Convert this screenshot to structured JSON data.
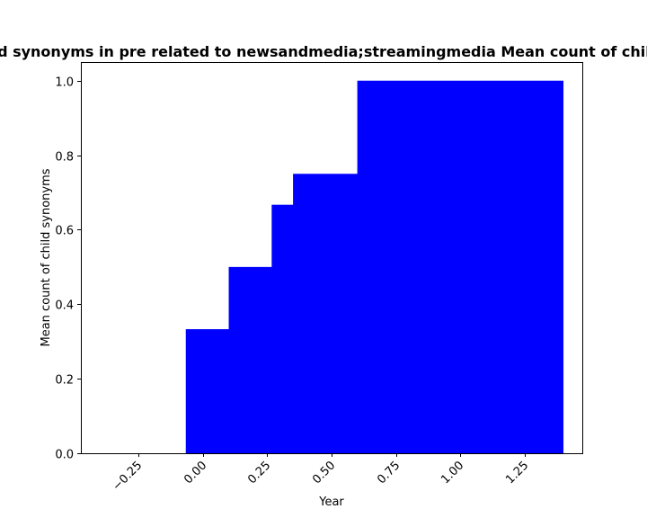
{
  "chart_data": {
    "type": "bar",
    "title": "Mean count of child synonyms in pre related to newsandmedia;streamingmedia Mean count of child synonyms in pre",
    "xlabel": "Year",
    "ylabel": "Mean count of child synonyms",
    "xlim": [
      -0.475,
      1.475
    ],
    "ylim": [
      0.0,
      1.05
    ],
    "color": "#0000ff",
    "bars": [
      {
        "x_left": -0.067,
        "x_right": 0.1,
        "value": 0.333
      },
      {
        "x_left": 0.1,
        "x_right": 0.267,
        "value": 0.5
      },
      {
        "x_left": 0.267,
        "x_right": 0.35,
        "value": 0.667
      },
      {
        "x_left": 0.35,
        "x_right": 0.6,
        "value": 0.75
      },
      {
        "x_left": 0.6,
        "x_right": 1.4,
        "value": 1.0
      }
    ],
    "x_ticks": [
      {
        "value": -0.25,
        "label": "−0.25"
      },
      {
        "value": 0.0,
        "label": "0.00"
      },
      {
        "value": 0.25,
        "label": "0.25"
      },
      {
        "value": 0.5,
        "label": "0.50"
      },
      {
        "value": 0.75,
        "label": "0.75"
      },
      {
        "value": 1.0,
        "label": "1.00"
      },
      {
        "value": 1.25,
        "label": "1.25"
      }
    ],
    "y_ticks": [
      {
        "value": 0.0,
        "label": "0.0"
      },
      {
        "value": 0.2,
        "label": "0.2"
      },
      {
        "value": 0.4,
        "label": "0.4"
      },
      {
        "value": 0.6,
        "label": "0.6"
      },
      {
        "value": 0.8,
        "label": "0.8"
      },
      {
        "value": 1.0,
        "label": "1.0"
      }
    ]
  }
}
